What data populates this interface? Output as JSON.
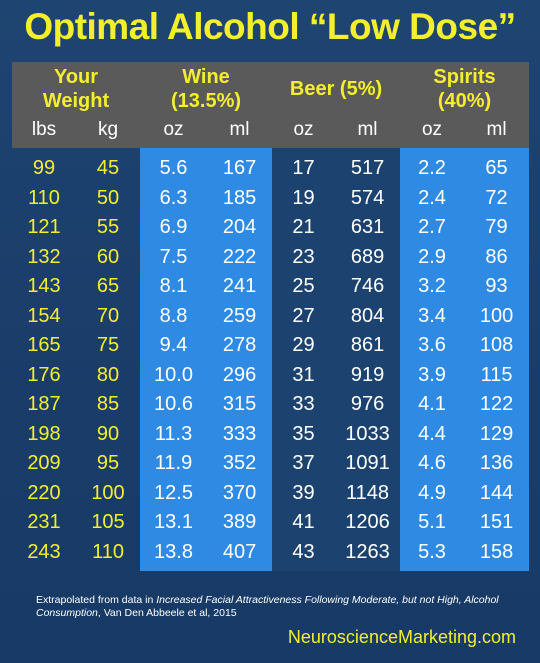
{
  "title": "Optimal Alcohol “Low Dose”",
  "headers": {
    "weight": [
      "Your",
      "Weight"
    ],
    "wine": [
      "Wine",
      "(13.5%)"
    ],
    "beer": "Beer (5%)",
    "spirits": [
      "Spirits",
      "(40%)"
    ]
  },
  "units": [
    "lbs",
    "kg",
    "oz",
    "ml",
    "oz",
    "ml",
    "oz",
    "ml"
  ],
  "rows": [
    [
      "99",
      "45",
      "5.6",
      "167",
      "17",
      "517",
      "2.2",
      "65"
    ],
    [
      "110",
      "50",
      "6.3",
      "185",
      "19",
      "574",
      "2.4",
      "72"
    ],
    [
      "121",
      "55",
      "6.9",
      "204",
      "21",
      "631",
      "2.7",
      "79"
    ],
    [
      "132",
      "60",
      "7.5",
      "222",
      "23",
      "689",
      "2.9",
      "86"
    ],
    [
      "143",
      "65",
      "8.1",
      "241",
      "25",
      "746",
      "3.2",
      "93"
    ],
    [
      "154",
      "70",
      "8.8",
      "259",
      "27",
      "804",
      "3.4",
      "100"
    ],
    [
      "165",
      "75",
      "9.4",
      "278",
      "29",
      "861",
      "3.6",
      "108"
    ],
    [
      "176",
      "80",
      "10.0",
      "296",
      "31",
      "919",
      "3.9",
      "115"
    ],
    [
      "187",
      "85",
      "10.6",
      "315",
      "33",
      "976",
      "4.1",
      "122"
    ],
    [
      "198",
      "90",
      "11.3",
      "333",
      "35",
      "1033",
      "4.4",
      "129"
    ],
    [
      "209",
      "95",
      "11.9",
      "352",
      "37",
      "1091",
      "4.6",
      "136"
    ],
    [
      "220",
      "100",
      "12.5",
      "370",
      "39",
      "1148",
      "4.9",
      "144"
    ],
    [
      "231",
      "105",
      "13.1",
      "389",
      "41",
      "1206",
      "5.1",
      "151"
    ],
    [
      "243",
      "110",
      "13.8",
      "407",
      "43",
      "1263",
      "5.3",
      "158"
    ]
  ],
  "note": {
    "prefix": "Extrapolated from data in ",
    "paper_title": "Increased Facial Attractiveness Following Moderate, but not High, Alcohol Consumption",
    "suffix": ", Van Den Abbeele et al, 2015"
  },
  "site": "NeuroscienceMarketing.com",
  "colors": {
    "background": "#1b3e6b",
    "header_bg": "#5a5a5a",
    "accent_yellow": "#f4ef2c",
    "column_blue": "#2f8ae3",
    "column_dark": "#1c426f"
  }
}
